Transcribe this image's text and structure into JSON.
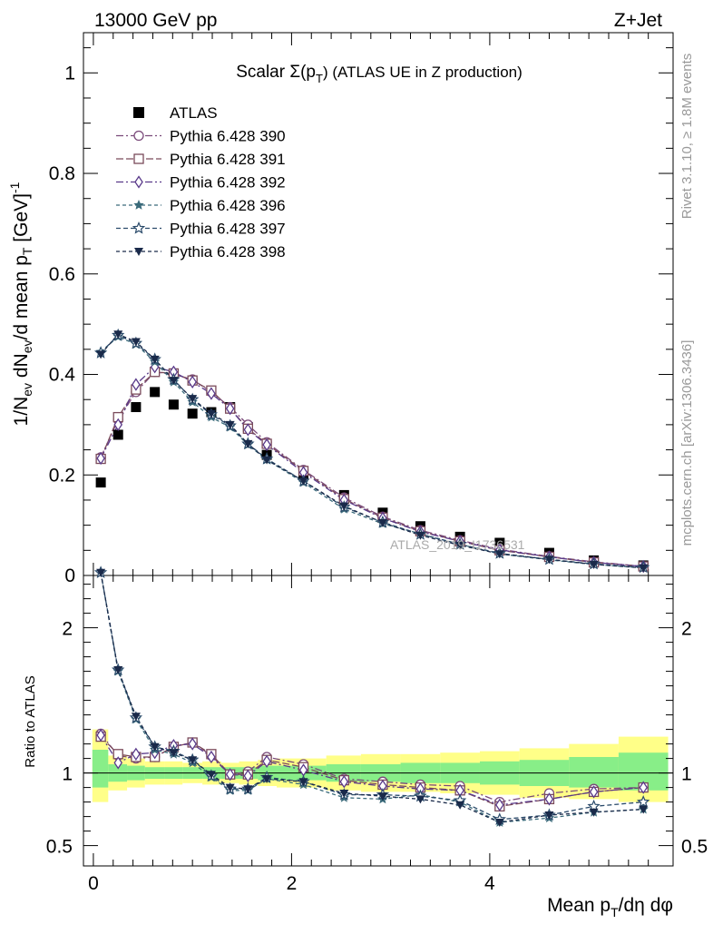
{
  "header": {
    "left": "13000 GeV pp",
    "right": "Z+Jet"
  },
  "side_labels": {
    "top": "Rivet 3.1.10, ≥ 1.8M events",
    "bottom": "mcplots.cern.ch [arXiv:1306.3436]"
  },
  "chart_data": [
    {
      "type": "line",
      "title_prefix": "Scalar Σ(p",
      "title_sub": "T",
      "title_suffix": ") (ATLAS UE in Z production)",
      "xlabel": "Mean p_T/dη dφ",
      "ylabel": "1/N_ev dN_ev/d mean p_T [GeV]^-1",
      "watermark": "ATLAS_2019_I1736531",
      "xlim": [
        -0.1,
        5.85
      ],
      "ylim": [
        0,
        1.08
      ],
      "x_ticks": [
        "0",
        "2",
        "4"
      ],
      "y_ticks": [
        "0",
        "0.2",
        "0.4",
        "0.6",
        "0.8",
        "1"
      ],
      "x": [
        0.075,
        0.25,
        0.43,
        0.62,
        0.81,
        1.0,
        1.19,
        1.38,
        1.56,
        1.75,
        2.12,
        2.53,
        2.92,
        3.3,
        3.7,
        4.1,
        4.6,
        5.05,
        5.55
      ],
      "series": [
        {
          "name": "ATLAS",
          "marker": "filled-square",
          "color": "#000000",
          "values": [
            0.185,
            0.28,
            0.335,
            0.365,
            0.34,
            0.322,
            0.325,
            0.335,
            0.295,
            0.24,
            0.2,
            0.16,
            0.125,
            0.098,
            0.077,
            0.065,
            0.045,
            0.03,
            0.02
          ]
        },
        {
          "name": "Pythia 6.428 390",
          "marker": "open-circle",
          "color": "#7a4a7a",
          "values": [
            0.235,
            0.31,
            0.365,
            0.405,
            0.4,
            0.39,
            0.365,
            0.335,
            0.3,
            0.265,
            0.21,
            0.155,
            0.117,
            0.09,
            0.07,
            0.052,
            0.038,
            0.027,
            0.018
          ]
        },
        {
          "name": "Pythia 6.428 391",
          "marker": "open-square",
          "color": "#7a4a5a",
          "values": [
            0.232,
            0.315,
            0.37,
            0.405,
            0.402,
            0.388,
            0.368,
            0.332,
            0.292,
            0.262,
            0.208,
            0.152,
            0.115,
            0.088,
            0.068,
            0.05,
            0.037,
            0.026,
            0.018
          ]
        },
        {
          "name": "Pythia 6.428 392",
          "marker": "open-diamond",
          "color": "#5a3a8a",
          "values": [
            0.233,
            0.3,
            0.38,
            0.415,
            0.405,
            0.385,
            0.362,
            0.332,
            0.29,
            0.26,
            0.205,
            0.15,
            0.114,
            0.087,
            0.068,
            0.051,
            0.037,
            0.026,
            0.018
          ]
        },
        {
          "name": "Pythia 6.428 396",
          "marker": "filled-star",
          "color": "#3a6a7a",
          "values": [
            0.445,
            0.475,
            0.46,
            0.425,
            0.385,
            0.345,
            0.315,
            0.295,
            0.26,
            0.23,
            0.185,
            0.132,
            0.103,
            0.083,
            0.062,
            0.043,
            0.031,
            0.022,
            0.015
          ]
        },
        {
          "name": "Pythia 6.428 397",
          "marker": "open-star",
          "color": "#2a4a6a",
          "values": [
            0.443,
            0.478,
            0.462,
            0.43,
            0.39,
            0.35,
            0.32,
            0.298,
            0.262,
            0.232,
            0.188,
            0.136,
            0.106,
            0.082,
            0.062,
            0.044,
            0.032,
            0.023,
            0.016
          ]
        },
        {
          "name": "Pythia 6.428 398",
          "marker": "filled-triangle-down",
          "color": "#1a2a4a",
          "values": [
            0.44,
            0.48,
            0.465,
            0.43,
            0.388,
            0.352,
            0.322,
            0.3,
            0.262,
            0.23,
            0.188,
            0.138,
            0.105,
            0.08,
            0.06,
            0.043,
            0.032,
            0.022,
            0.015
          ]
        }
      ]
    },
    {
      "type": "line",
      "ylabel": "Ratio to ATLAS",
      "xlim": [
        -0.1,
        5.85
      ],
      "ylim": [
        0.36,
        2.36
      ],
      "y_ticks": [
        "0.5",
        "1",
        "2"
      ],
      "x_ticks": [
        "0",
        "2",
        "4"
      ],
      "band_edges": [
        -0.01,
        0.15,
        0.34,
        0.52,
        0.72,
        0.9,
        1.1,
        1.29,
        1.47,
        1.66,
        1.85,
        2.35,
        2.7,
        3.1,
        3.5,
        3.9,
        4.3,
        4.8,
        5.3,
        5.8
      ],
      "band_yellow": [
        [
          0.8,
          1.3
        ],
        [
          0.88,
          1.12
        ],
        [
          0.9,
          1.1
        ],
        [
          0.92,
          1.08
        ],
        [
          0.92,
          1.08
        ],
        [
          0.93,
          1.07
        ],
        [
          0.92,
          1.08
        ],
        [
          0.93,
          1.07
        ],
        [
          0.92,
          1.08
        ],
        [
          0.91,
          1.09
        ],
        [
          0.9,
          1.1
        ],
        [
          0.88,
          1.12
        ],
        [
          0.87,
          1.13
        ],
        [
          0.87,
          1.13
        ],
        [
          0.86,
          1.14
        ],
        [
          0.85,
          1.15
        ],
        [
          0.83,
          1.17
        ],
        [
          0.82,
          1.2
        ],
        [
          0.8,
          1.25
        ]
      ],
      "band_green": [
        [
          0.9,
          1.16
        ],
        [
          0.94,
          1.06
        ],
        [
          0.95,
          1.05
        ],
        [
          0.96,
          1.04
        ],
        [
          0.96,
          1.04
        ],
        [
          0.96,
          1.04
        ],
        [
          0.96,
          1.04
        ],
        [
          0.96,
          1.04
        ],
        [
          0.96,
          1.04
        ],
        [
          0.95,
          1.05
        ],
        [
          0.95,
          1.05
        ],
        [
          0.94,
          1.06
        ],
        [
          0.94,
          1.06
        ],
        [
          0.93,
          1.07
        ],
        [
          0.93,
          1.07
        ],
        [
          0.92,
          1.08
        ],
        [
          0.91,
          1.09
        ],
        [
          0.9,
          1.11
        ],
        [
          0.88,
          1.14
        ]
      ],
      "series": [
        {
          "name": "Pythia 6.428 390",
          "values": [
            1.27,
            1.12,
            1.1,
            1.11,
            1.18,
            1.21,
            1.12,
            0.99,
            1.01,
            1.11,
            1.06,
            0.96,
            0.94,
            0.92,
            0.91,
            0.8,
            0.86,
            0.89,
            0.9
          ]
        },
        {
          "name": "Pythia 6.428 391",
          "values": [
            1.25,
            1.13,
            1.11,
            1.11,
            1.18,
            1.21,
            1.13,
            0.99,
            0.99,
            1.09,
            1.04,
            0.95,
            0.92,
            0.9,
            0.88,
            0.77,
            0.82,
            0.87,
            0.9
          ]
        },
        {
          "name": "Pythia 6.428 392",
          "values": [
            1.26,
            1.07,
            1.13,
            1.14,
            1.19,
            1.2,
            1.11,
            0.99,
            0.98,
            1.08,
            1.02,
            0.94,
            0.91,
            0.89,
            0.88,
            0.78,
            0.82,
            0.87,
            0.9
          ]
        },
        {
          "name": "Pythia 6.428 396",
          "values": [
            2.4,
            1.7,
            1.37,
            1.16,
            1.13,
            1.07,
            0.97,
            0.88,
            0.88,
            0.96,
            0.92,
            0.83,
            0.82,
            0.85,
            0.8,
            0.66,
            0.69,
            0.73,
            0.75
          ]
        },
        {
          "name": "Pythia 6.428 397",
          "values": [
            2.39,
            1.71,
            1.38,
            1.18,
            1.15,
            1.09,
            0.98,
            0.89,
            0.89,
            0.97,
            0.94,
            0.85,
            0.85,
            0.84,
            0.81,
            0.68,
            0.71,
            0.77,
            0.8
          ]
        },
        {
          "name": "Pythia 6.428 398",
          "values": [
            2.38,
            1.71,
            1.39,
            1.18,
            1.14,
            1.09,
            0.99,
            0.9,
            0.89,
            0.96,
            0.94,
            0.86,
            0.84,
            0.82,
            0.78,
            0.66,
            0.71,
            0.73,
            0.75
          ]
        }
      ]
    }
  ]
}
